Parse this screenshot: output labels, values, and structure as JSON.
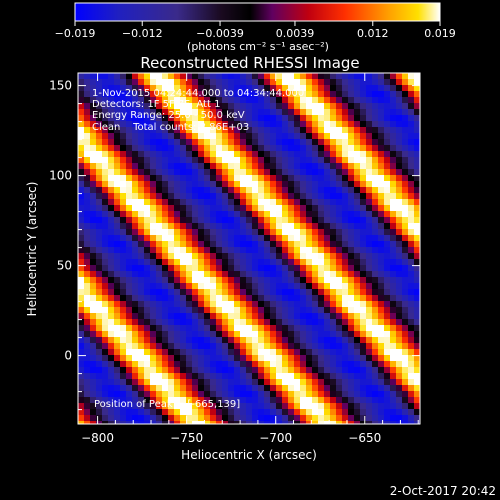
{
  "chart_data": {
    "type": "heatmap",
    "title": "Reconstructed RHESSI Image",
    "xlabel": "Heliocentric X (arcsec)",
    "ylabel": "Heliocentric Y (arcsec)",
    "x_range": [
      -811,
      -619
    ],
    "y_range": [
      -38,
      157
    ],
    "x_ticks": [
      -800,
      -750,
      -700,
      -650
    ],
    "y_ticks": [
      0,
      50,
      100,
      150
    ],
    "x_tick_labels": [
      "−800",
      "−750",
      "−700",
      "−650"
    ],
    "y_tick_labels": [
      "0",
      "50",
      "100",
      "150"
    ],
    "colorbar": {
      "range": [
        -0.019,
        0.019
      ],
      "ticks": [
        -0.019,
        -0.012,
        -0.0039,
        0.0039,
        0.012,
        0.019
      ],
      "tick_labels": [
        "−0.019",
        "−0.012",
        "−0.0039",
        "0.0039",
        "0.012",
        "0.019"
      ],
      "unit_label": "(photons cm⁻² s⁻¹ asec⁻²)",
      "colors": [
        "#0000ff",
        "#1a1aa0",
        "#3c2a80",
        "#000000",
        "#700070",
        "#b00010",
        "#ff3000",
        "#ff9000",
        "#ffe000",
        "#ffffff"
      ]
    },
    "annotations": [
      "1-Nov-2015 04:24:44.000 to 04:34:44.000",
      "Detectors: 1F 5F 7F, Att 1",
      "Energy Range: 25.0 - 50.0 keV",
      "Clean    Total counts: 8.86E+03"
    ],
    "peak_label": "Position of Peak = [-665,139]",
    "peak_position": [
      -665,
      139
    ],
    "stripe_pattern": {
      "description_values": "diagonal stripes of alternating positive/negative flux",
      "wavelength_arcsec": 55,
      "slope": -1.15
    }
  },
  "footer": {
    "date": "2-Oct-2017 20:42"
  }
}
